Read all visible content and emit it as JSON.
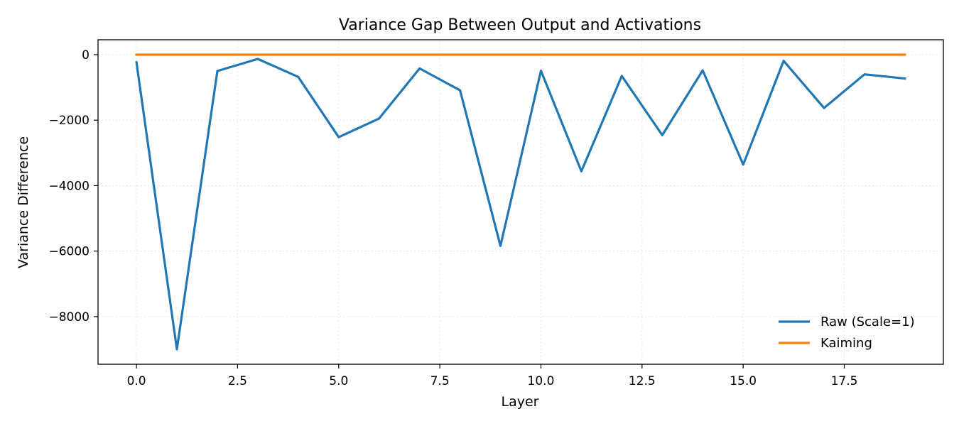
{
  "chart_data": {
    "type": "line",
    "title": "Variance Gap Between Output and Activations",
    "xlabel": "Layer",
    "ylabel": "Variance Difference",
    "xlim": [
      -0.95,
      19.95
    ],
    "ylim": [
      -9455,
      455
    ],
    "x_ticks": [
      0.0,
      2.5,
      5.0,
      7.5,
      10.0,
      12.5,
      15.0,
      17.5
    ],
    "x_tick_labels": [
      "0.0",
      "2.5",
      "5.0",
      "7.5",
      "10.0",
      "12.5",
      "15.0",
      "17.5"
    ],
    "y_ticks": [
      0,
      -2000,
      -4000,
      -6000,
      -8000
    ],
    "y_tick_labels": [
      "0",
      "−2000",
      "−4000",
      "−6000",
      "−8000"
    ],
    "grid": true,
    "legend_position": "bottom-right",
    "x": [
      0,
      1,
      2,
      3,
      4,
      5,
      6,
      7,
      8,
      9,
      10,
      11,
      12,
      13,
      14,
      15,
      16,
      17,
      18,
      19
    ],
    "series": [
      {
        "name": "Raw (Scale=1)",
        "color": "#1f77b4",
        "values": [
          -230,
          -9000,
          -500,
          -130,
          -680,
          -2520,
          -1950,
          -420,
          -1090,
          -5840,
          -490,
          -3560,
          -650,
          -2460,
          -480,
          -3360,
          -190,
          -1630,
          -600,
          -730
        ]
      },
      {
        "name": "Kaiming",
        "color": "#ff7f0e",
        "values": [
          0,
          0,
          0,
          0,
          0,
          0,
          0,
          0,
          0,
          0,
          0,
          0,
          0,
          0,
          0,
          0,
          0,
          0,
          0,
          0
        ]
      }
    ]
  }
}
